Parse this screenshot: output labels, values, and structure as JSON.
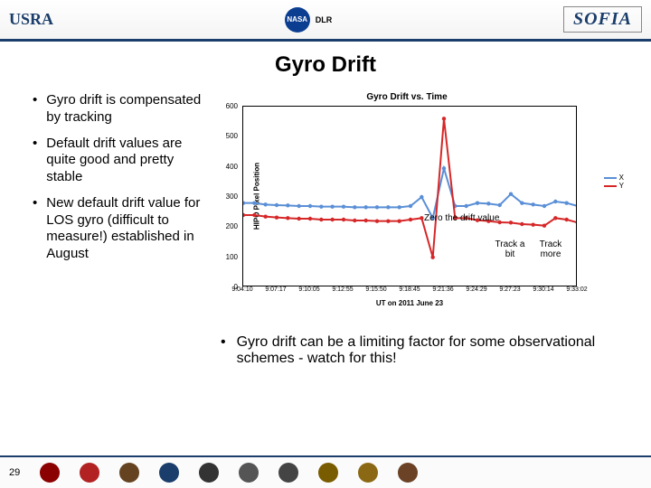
{
  "header": {
    "usra": "USRA",
    "nasa": "NASA",
    "dlr": "DLR",
    "sofia": "SOFIA"
  },
  "title": "Gyro Drift",
  "left_bullets": [
    "Gyro drift is compensated by tracking",
    "Default drift values are quite good and pretty stable",
    "New default drift value for LOS gyro (difficult to measure!) established in August"
  ],
  "chart": {
    "title": "Gyro Drift vs. Time",
    "ytitle": "HIPO Pixel Position",
    "xtitle": "UT on 2011 June 23",
    "ylim": [
      0,
      600
    ],
    "ytick_step": 100,
    "xticks": [
      "9:04:10",
      "9:07:17",
      "9:10:05",
      "9:12:55",
      "9:15:50",
      "9:18:45",
      "9:21:36",
      "9:24:29",
      "9:27:23",
      "9:30:14",
      "9:33:02"
    ],
    "series": [
      {
        "name": "X",
        "color": "#5a8fd6",
        "values": [
          280,
          280,
          275,
          273,
          272,
          270,
          270,
          268,
          268,
          268,
          266,
          266,
          266,
          266,
          266,
          270,
          300,
          230,
          395,
          270,
          270,
          280,
          278,
          273,
          310,
          280,
          275,
          270,
          285,
          280,
          270
        ]
      },
      {
        "name": "Y",
        "color": "#d62728",
        "values": [
          240,
          240,
          235,
          232,
          230,
          228,
          228,
          225,
          225,
          225,
          222,
          222,
          220,
          220,
          220,
          225,
          230,
          100,
          560,
          230,
          230,
          223,
          220,
          216,
          215,
          210,
          208,
          205,
          230,
          225,
          215
        ]
      }
    ],
    "legend": [
      {
        "label": "X",
        "color": "#5a8fd6"
      },
      {
        "label": "Y",
        "color": "#d62728"
      }
    ],
    "line_width": 2,
    "marker_size": 2.2,
    "background_color": "#ffffff",
    "border_color": "#000000"
  },
  "annotations": {
    "zero": "Zero the drift value",
    "track_a_bit": "Track a bit",
    "track_more": "Track more"
  },
  "bottom_bullet": "Gyro drift can be a limiting factor for some observational schemes - watch for this!",
  "page_number": "29"
}
